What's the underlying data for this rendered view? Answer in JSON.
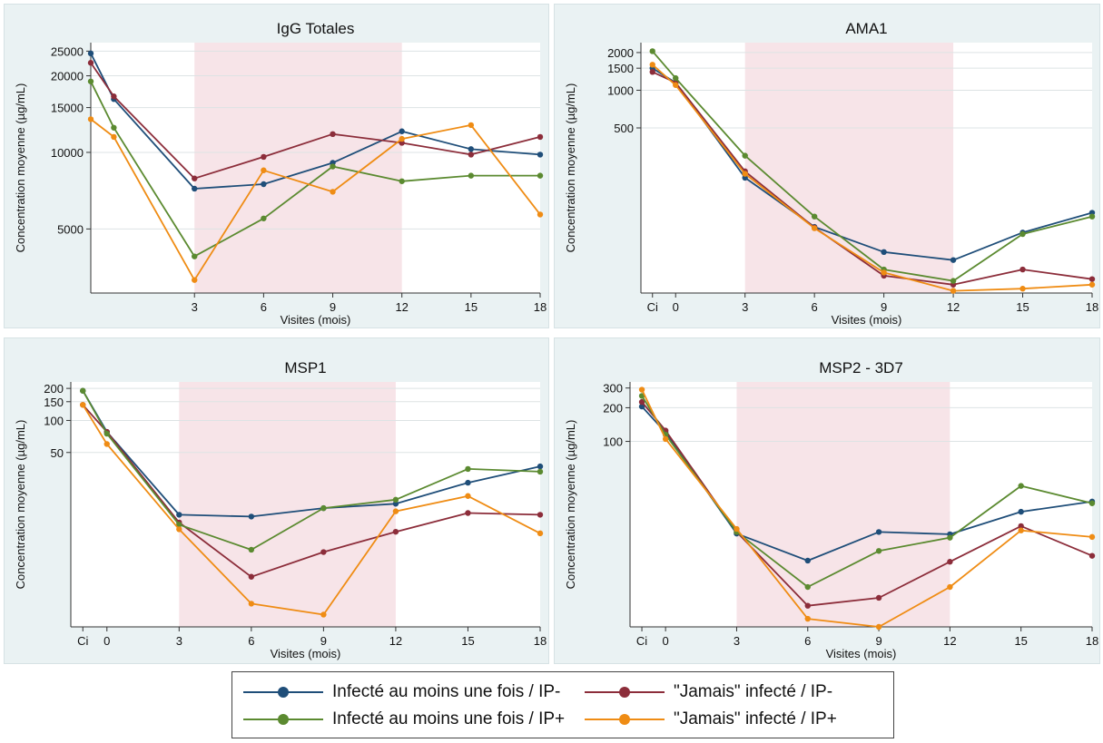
{
  "colors": {
    "series": [
      "#1f4e79",
      "#8c2d3a",
      "#5b8a30",
      "#ef8c14"
    ],
    "shade": "#f7e4e8",
    "panel_bg": "#eaf2f3",
    "grid": "#dde3e4"
  },
  "legend": {
    "items": [
      {
        "label": "Infecté au moins une fois / IP-"
      },
      {
        "label": "\"Jamais\" infecté / IP-"
      },
      {
        "label": "Infecté au moins une fois / IP+"
      },
      {
        "label": "\"Jamais\"  infecté / IP+"
      }
    ]
  },
  "chart_data": [
    {
      "type": "line",
      "title": "IgG Totales",
      "xlabel": "Visites (mois)",
      "ylabel": "Concentration moyenne (µg/mL)",
      "x_ticks": [
        {
          "x": 3,
          "label": "3"
        },
        {
          "x": 6,
          "label": "6"
        },
        {
          "x": 9,
          "label": "9"
        },
        {
          "x": 12,
          "label": "12"
        },
        {
          "x": 15,
          "label": "15"
        },
        {
          "x": 18,
          "label": "18"
        }
      ],
      "y_ticks": [
        5000,
        10000,
        15000,
        20000,
        25000
      ],
      "ylim": [
        2800,
        27000
      ],
      "y_scale": "log",
      "shaded_x": [
        3,
        12
      ],
      "x": [
        -1.5,
        -0.5,
        3,
        6,
        9,
        12,
        15,
        18
      ],
      "series": [
        {
          "name": "Infecté au moins une fois / IP-",
          "values": [
            24500,
            16200,
            7200,
            7500,
            9100,
            12100,
            10300,
            9800
          ]
        },
        {
          "name": "\"Jamais\" infecté / IP-",
          "values": [
            22500,
            16600,
            7900,
            9600,
            11800,
            10900,
            9800,
            11500
          ]
        },
        {
          "name": "Infecté au moins une fois / IP+",
          "values": [
            19000,
            12500,
            3900,
            5500,
            8800,
            7700,
            8100,
            8100
          ]
        },
        {
          "name": "\"Jamais\"  infecté / IP+",
          "values": [
            13500,
            11500,
            3150,
            8500,
            7000,
            11300,
            12800,
            5700
          ]
        }
      ]
    },
    {
      "type": "line",
      "title": "AMA1",
      "xlabel": "Visites (mois)",
      "ylabel": "Concentration moyenne (µg/mL)",
      "x_ticks": [
        {
          "x": -1,
          "label": "Ci"
        },
        {
          "x": 0,
          "label": "0"
        },
        {
          "x": 3,
          "label": "3"
        },
        {
          "x": 6,
          "label": "6"
        },
        {
          "x": 9,
          "label": "9"
        },
        {
          "x": 12,
          "label": "12"
        },
        {
          "x": 15,
          "label": "15"
        },
        {
          "x": 18,
          "label": "18"
        }
      ],
      "y_ticks": [
        500,
        1000,
        1500,
        2000
      ],
      "ylim": [
        24,
        2400
      ],
      "y_scale": "log",
      "shaded_x": [
        3,
        12
      ],
      "x": [
        -1,
        0,
        3,
        6,
        9,
        12,
        15,
        18
      ],
      "series": [
        {
          "name": "Infecté au moins une fois / IP-",
          "values": [
            1500,
            1150,
            200,
            81,
            51,
            44,
            73,
            105
          ]
        },
        {
          "name": "\"Jamais\" infecté / IP-",
          "values": [
            1400,
            1150,
            225,
            80,
            33,
            28,
            37,
            31
          ]
        },
        {
          "name": "Infecté au moins une fois / IP+",
          "values": [
            2050,
            1250,
            300,
            98,
            37,
            30,
            71,
            98
          ]
        },
        {
          "name": "\"Jamais\"  infecté / IP+",
          "values": [
            1600,
            1100,
            215,
            79,
            35,
            25,
            26,
            28
          ]
        }
      ]
    },
    {
      "type": "line",
      "title": "MSP1",
      "xlabel": "Visites (mois)",
      "ylabel": "Concentration moyenne (µg/mL)",
      "x_ticks": [
        {
          "x": -1,
          "label": "Ci"
        },
        {
          "x": 0,
          "label": "0"
        },
        {
          "x": 3,
          "label": "3"
        },
        {
          "x": 6,
          "label": "6"
        },
        {
          "x": 9,
          "label": "9"
        },
        {
          "x": 12,
          "label": "12"
        },
        {
          "x": 15,
          "label": "15"
        },
        {
          "x": 18,
          "label": "18"
        }
      ],
      "y_ticks": [
        50,
        100,
        150,
        200
      ],
      "ylim": [
        1.15,
        230
      ],
      "y_scale": "log",
      "shaded_x": [
        3,
        12
      ],
      "x": [
        -1,
        0,
        3,
        6,
        9,
        12,
        15,
        18
      ],
      "series": [
        {
          "name": "Infecté au moins une fois / IP-",
          "values": [
            190,
            78,
            13,
            12.5,
            15,
            16.5,
            26,
            37
          ]
        },
        {
          "name": "\"Jamais\" infecté / IP-",
          "values": [
            140,
            78,
            11,
            3.4,
            5.8,
            9,
            13.5,
            13
          ]
        },
        {
          "name": "Infecté au moins une fois / IP+",
          "values": [
            190,
            75,
            10.5,
            6.1,
            15,
            18,
            35,
            33
          ]
        },
        {
          "name": "\"Jamais\"  infecté / IP+",
          "values": [
            140,
            60,
            9.5,
            1.9,
            1.5,
            14,
            19.5,
            8.7
          ]
        }
      ]
    },
    {
      "type": "line",
      "title": "MSP2 - 3D7",
      "xlabel": "Visites (mois)",
      "ylabel": "Concentration moyenne (µg/mL)",
      "x_ticks": [
        {
          "x": -1,
          "label": "Ci"
        },
        {
          "x": 0,
          "label": "0"
        },
        {
          "x": 3,
          "label": "3"
        },
        {
          "x": 6,
          "label": "6"
        },
        {
          "x": 9,
          "label": "9"
        },
        {
          "x": 12,
          "label": "12"
        },
        {
          "x": 15,
          "label": "15"
        },
        {
          "x": 18,
          "label": "18"
        }
      ],
      "y_ticks": [
        100,
        200,
        300
      ],
      "ylim": [
        2.2,
        340
      ],
      "y_scale": "log",
      "shaded_x": [
        3,
        12
      ],
      "x": [
        -1,
        0,
        3,
        6,
        9,
        12,
        15,
        18
      ],
      "series": [
        {
          "name": "Infecté au moins une fois / IP-",
          "values": [
            205,
            120,
            15,
            8.6,
            15.5,
            14.8,
            23.5,
            29
          ]
        },
        {
          "name": "\"Jamais\" infecté / IP-",
          "values": [
            225,
            125,
            15.5,
            3.4,
            4.0,
            8.4,
            17.5,
            9.5
          ]
        },
        {
          "name": "Infecté au moins une fois / IP+",
          "values": [
            255,
            115,
            15.5,
            5.0,
            10.5,
            13.8,
            40,
            28
          ]
        },
        {
          "name": "\"Jamais\"  infecté / IP+",
          "values": [
            290,
            105,
            16.5,
            2.6,
            2.2,
            5.0,
            16,
            14
          ]
        }
      ]
    }
  ]
}
